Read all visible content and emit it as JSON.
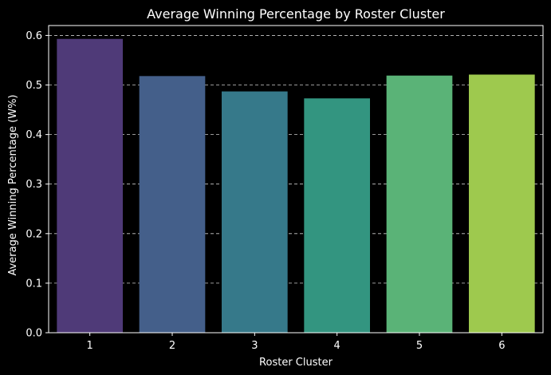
{
  "chart_data": {
    "type": "bar",
    "title": "Average Winning Percentage by Roster Cluster",
    "xlabel": "Roster Cluster",
    "ylabel": "Average Winning Percentage (W%)",
    "categories": [
      "1",
      "2",
      "3",
      "4",
      "5",
      "6"
    ],
    "values": [
      0.593,
      0.518,
      0.487,
      0.473,
      0.519,
      0.521
    ],
    "ylim": [
      0,
      0.62
    ],
    "yticks": [
      "0.0",
      "0.1",
      "0.2",
      "0.3",
      "0.4",
      "0.5",
      "0.6"
    ],
    "grid": "y-dashed",
    "colors": {
      "background": "#000000",
      "axis": "#ffffff",
      "grid": "#cccccc",
      "bars": [
        "#4f3a78",
        "#445f8a",
        "#36798a",
        "#339580",
        "#5ab377",
        "#9ec94e"
      ]
    }
  }
}
